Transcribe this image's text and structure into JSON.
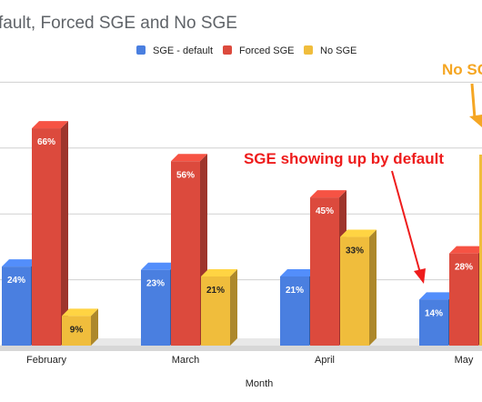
{
  "chart_data": {
    "type": "bar",
    "title": "fault, Forced SGE and No SGE",
    "xlabel": "Month",
    "ylabel": "",
    "categories": [
      "February",
      "March",
      "April",
      "May"
    ],
    "series": [
      {
        "name": "SGE - default",
        "values": [
          24,
          23,
          21,
          14
        ],
        "labels": [
          "24%",
          "23%",
          "21%",
          "14%"
        ],
        "color": "#4a7fe0"
      },
      {
        "name": "Forced SGE",
        "values": [
          66,
          56,
          45,
          28
        ],
        "labels": [
          "66%",
          "56%",
          "45%",
          "28%"
        ],
        "color": "#dc4a3d"
      },
      {
        "name": "No SGE",
        "values": [
          9,
          21,
          33,
          null
        ],
        "labels": [
          "9%",
          "21%",
          "33%",
          ""
        ],
        "color": "#f0bd3c"
      }
    ],
    "ylim": [
      0,
      80
    ],
    "grid": true,
    "legend_position": "top",
    "annotations": [
      {
        "text": "SGE showing up by default",
        "color": "#ee1c1c"
      },
      {
        "text": "No SG",
        "color": "#f5a623"
      }
    ]
  }
}
